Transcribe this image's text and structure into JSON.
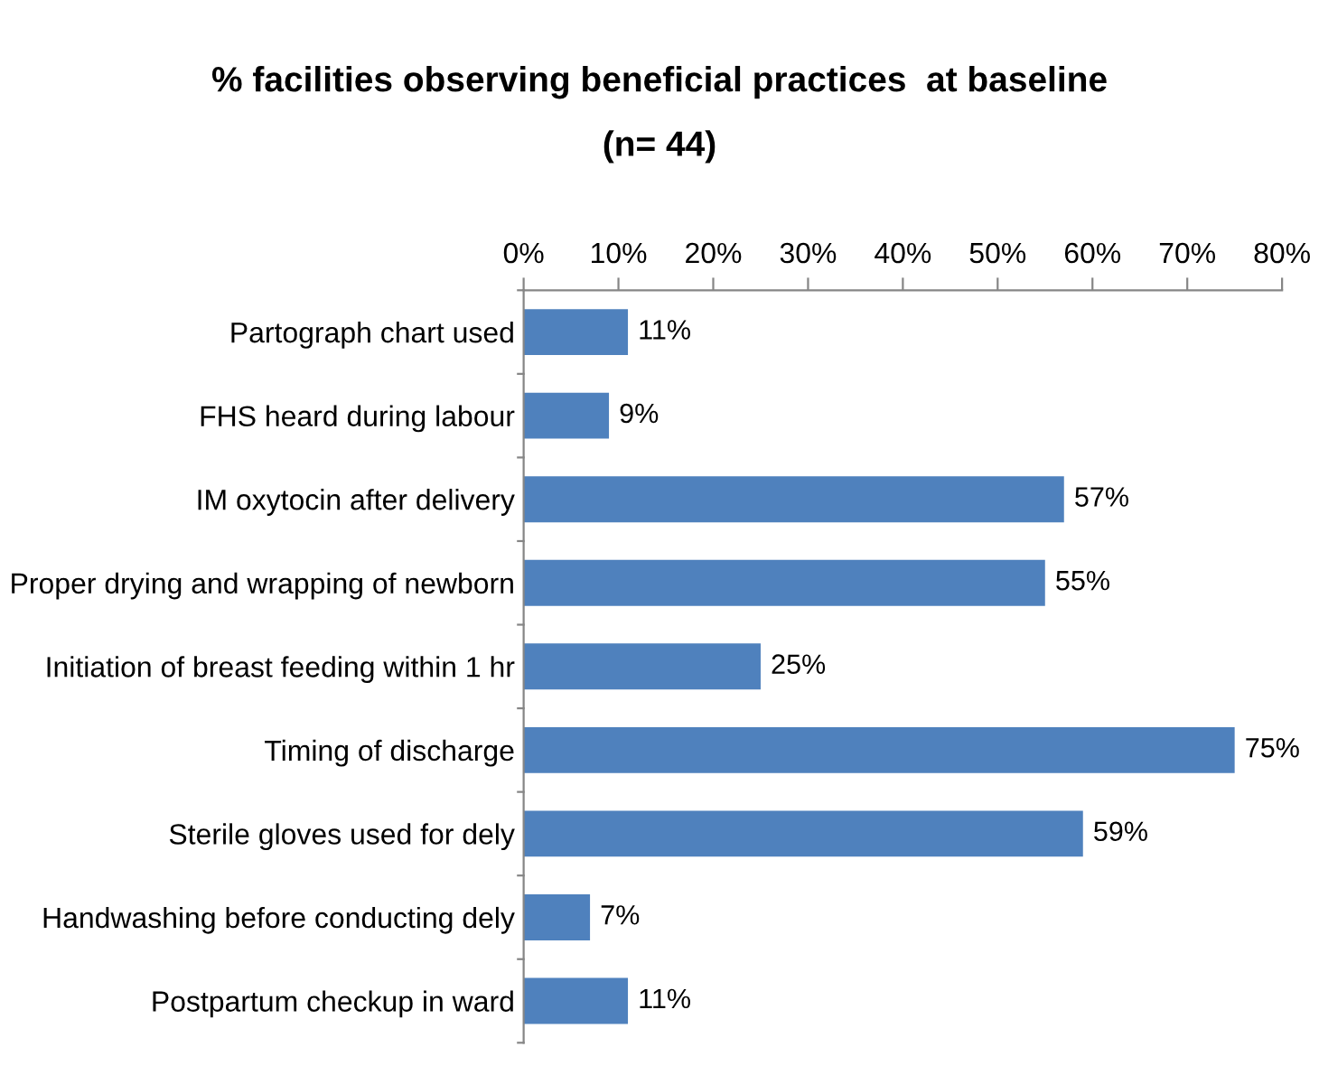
{
  "chart_data": {
    "type": "bar",
    "orientation": "horizontal",
    "title": "% facilities observing beneficial practices  at baseline",
    "subtitle": "(n= 44)",
    "categories": [
      "Partograph chart used",
      "FHS heard during labour",
      "IM oxytocin after delivery",
      "Proper drying and wrapping of newborn",
      "Initiation of breast feeding within 1 hr",
      "Timing of discharge",
      "Sterile gloves used for dely",
      "Handwashing before conducting dely",
      "Postpartum checkup in ward"
    ],
    "values": [
      11,
      9,
      57,
      55,
      25,
      75,
      59,
      7,
      11
    ],
    "value_labels": [
      "11%",
      "9%",
      "57%",
      "55%",
      "25%",
      "75%",
      "59%",
      "7%",
      "11%"
    ],
    "color": "#4f81bd",
    "xlim": [
      0,
      80
    ],
    "xticks": [
      {
        "value": 0,
        "label": "0%"
      },
      {
        "value": 10,
        "label": "10%"
      },
      {
        "value": 20,
        "label": "20%"
      },
      {
        "value": 30,
        "label": "30%"
      },
      {
        "value": 40,
        "label": "40%"
      },
      {
        "value": 50,
        "label": "50%"
      },
      {
        "value": 60,
        "label": "60%"
      },
      {
        "value": 70,
        "label": "70%"
      },
      {
        "value": 80,
        "label": "80%"
      }
    ],
    "grid": false,
    "legend": false
  }
}
